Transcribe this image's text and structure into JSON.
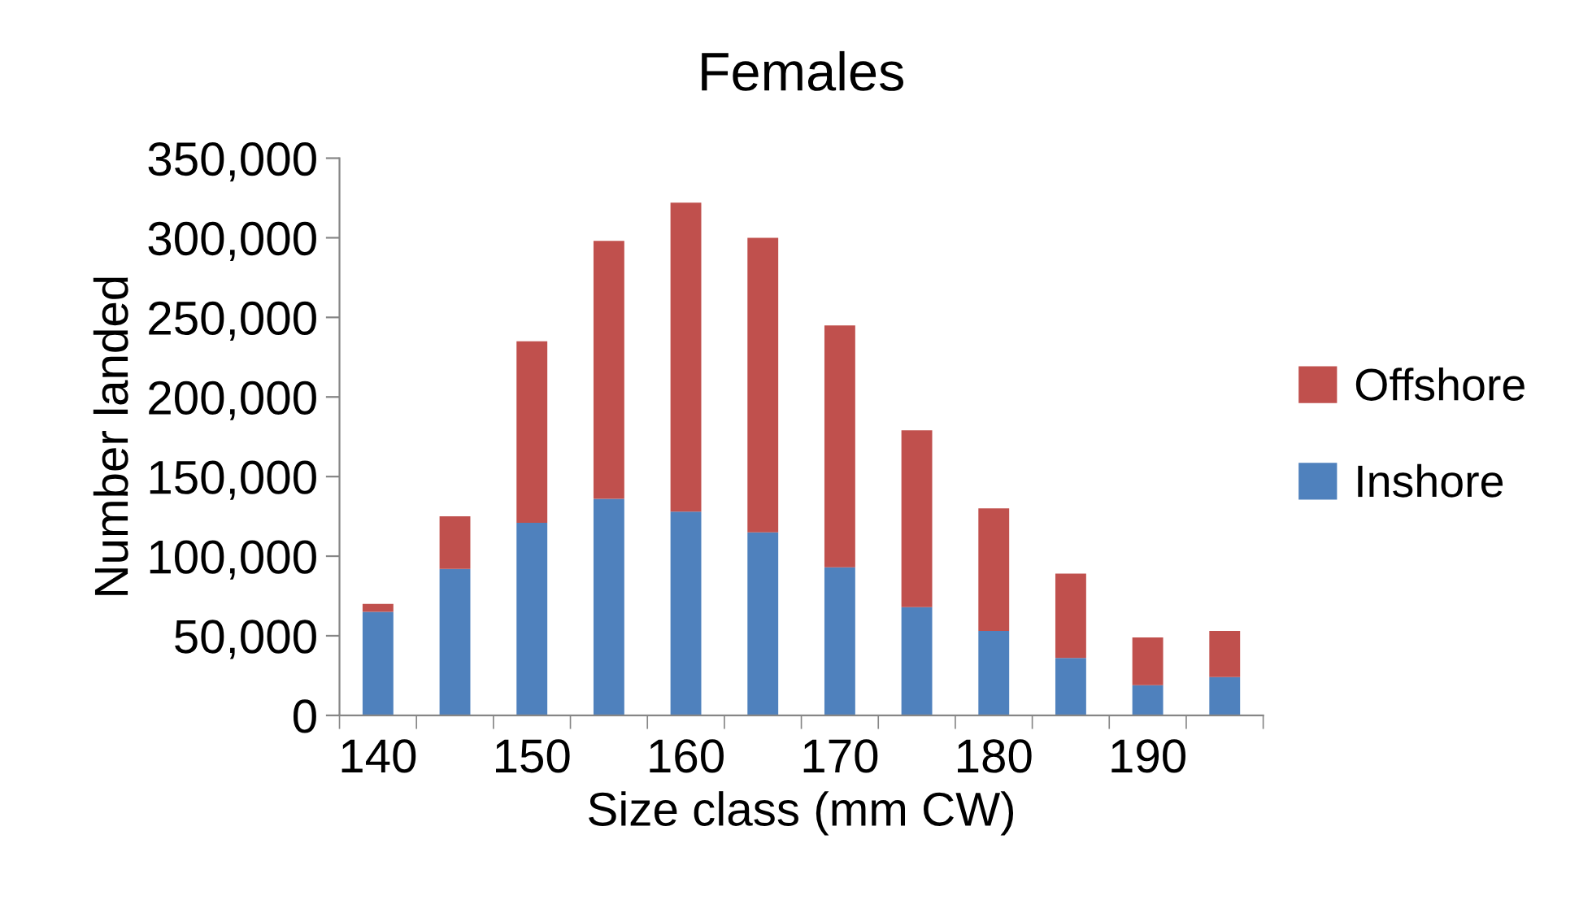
{
  "chart_data": {
    "type": "bar",
    "title": "Females",
    "xlabel": "Size class (mm CW)",
    "ylabel": "Number landed",
    "categories": [
      "140",
      null,
      "150",
      null,
      "160",
      null,
      "170",
      null,
      "180",
      null,
      "190",
      null
    ],
    "stacked": true,
    "series": [
      {
        "name": "Inshore",
        "color": "#4f81bd",
        "values": [
          65000,
          92000,
          121000,
          136000,
          128000,
          115000,
          93000,
          68000,
          53000,
          36000,
          19000,
          24000
        ]
      },
      {
        "name": "Offshore",
        "color": "#c0504d",
        "values": [
          5000,
          33000,
          114000,
          162000,
          194000,
          185000,
          152000,
          111000,
          77000,
          53000,
          30000,
          29000
        ]
      }
    ],
    "ylim": [
      0,
      350000
    ],
    "yticks": [
      {
        "value": 0,
        "label": "0"
      },
      {
        "value": 50000,
        "label": "50,000"
      },
      {
        "value": 100000,
        "label": "100,000"
      },
      {
        "value": 150000,
        "label": "150,000"
      },
      {
        "value": 200000,
        "label": "200,000"
      },
      {
        "value": 250000,
        "label": "250,000"
      },
      {
        "value": 300000,
        "label": "300,000"
      },
      {
        "value": 350000,
        "label": "350,000"
      }
    ],
    "grid": false,
    "legend": "right"
  }
}
